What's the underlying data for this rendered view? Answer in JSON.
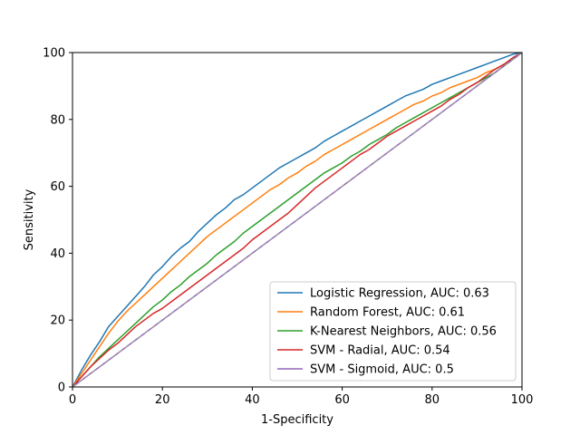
{
  "chart_data": {
    "type": "line",
    "title": "",
    "xlabel": "1-Specificity",
    "ylabel": "Sensitivity",
    "xlim": [
      0,
      100
    ],
    "ylim": [
      0,
      100
    ],
    "xticks": [
      "0",
      "20",
      "40",
      "60",
      "80",
      "100"
    ],
    "yticks": [
      "0",
      "20",
      "40",
      "60",
      "80",
      "100"
    ],
    "grid": false,
    "legend_position": "lower-right",
    "series": [
      {
        "name": "Logistic Regression, AUC: 0.63",
        "color": "#1f77b4",
        "x": [
          0,
          2,
          4,
          6,
          8,
          10,
          12,
          14,
          16,
          18,
          20,
          22,
          24,
          26,
          28,
          30,
          32,
          34,
          36,
          38,
          40,
          42,
          44,
          46,
          48,
          50,
          52,
          54,
          56,
          58,
          60,
          62,
          64,
          66,
          68,
          70,
          72,
          74,
          76,
          78,
          80,
          82,
          84,
          86,
          88,
          90,
          92,
          94,
          96,
          98,
          100
        ],
        "y": [
          0,
          5,
          9.5,
          13.5,
          18,
          21,
          24,
          27,
          30,
          33.5,
          36,
          39,
          41.5,
          43.5,
          46.5,
          49,
          51.5,
          53.5,
          56,
          57.5,
          59.5,
          61.5,
          63.5,
          65.5,
          67,
          68.5,
          70,
          71.5,
          73.5,
          75,
          76.5,
          78,
          79.5,
          81,
          82.5,
          84,
          85.5,
          87,
          88,
          89,
          90.5,
          91.5,
          92.5,
          93.5,
          94.5,
          95.5,
          96.5,
          97.5,
          98.5,
          99.5,
          100
        ]
      },
      {
        "name": "Random Forest, AUC: 0.61",
        "color": "#ff7f0e",
        "x": [
          0,
          2,
          4,
          6,
          8,
          10,
          12,
          14,
          16,
          18,
          20,
          22,
          24,
          26,
          28,
          30,
          32,
          34,
          36,
          38,
          40,
          42,
          44,
          46,
          48,
          50,
          52,
          54,
          56,
          58,
          60,
          62,
          64,
          66,
          68,
          70,
          72,
          74,
          76,
          78,
          80,
          82,
          84,
          86,
          88,
          90,
          92,
          94,
          96,
          98,
          100
        ],
        "y": [
          0,
          4,
          8,
          12,
          16,
          19.5,
          22.5,
          25,
          27.5,
          30,
          32.5,
          35,
          37.5,
          40,
          42.5,
          45,
          47,
          49,
          51,
          53,
          55,
          57,
          59,
          60.5,
          62.5,
          64,
          66,
          67.5,
          69.5,
          71,
          72.5,
          74,
          75.5,
          77,
          78.5,
          80,
          81.5,
          83,
          84.5,
          85.5,
          87,
          88,
          89.5,
          90.5,
          91.5,
          92.5,
          94,
          95,
          96.5,
          98,
          100
        ]
      },
      {
        "name": "K-Nearest Neighbors, AUC: 0.56",
        "color": "#2ca02c",
        "x": [
          0,
          2,
          4,
          6,
          8,
          10,
          12,
          14,
          16,
          18,
          20,
          22,
          24,
          26,
          28,
          30,
          32,
          34,
          36,
          38,
          40,
          42,
          44,
          46,
          48,
          50,
          52,
          54,
          56,
          58,
          60,
          62,
          64,
          66,
          68,
          70,
          72,
          74,
          76,
          78,
          80,
          82,
          84,
          86,
          88,
          90,
          92,
          94,
          96,
          98,
          100
        ],
        "y": [
          0,
          3,
          6,
          9,
          11.5,
          14,
          16.5,
          19,
          21.5,
          24,
          26,
          28.5,
          30.5,
          33,
          35,
          37,
          39.5,
          41.5,
          43.5,
          46,
          48,
          50,
          52,
          54,
          56,
          58,
          60,
          62,
          64,
          65.5,
          67,
          69,
          70.5,
          72.5,
          74,
          75.5,
          77.5,
          79,
          80.5,
          82,
          83.5,
          85,
          86.5,
          88,
          89.5,
          91,
          92.5,
          94,
          96,
          98,
          100
        ]
      },
      {
        "name": "SVM - Radial, AUC: 0.54",
        "color": "#d62728",
        "x": [
          0,
          2,
          4,
          6,
          8,
          10,
          12,
          14,
          16,
          18,
          20,
          22,
          24,
          26,
          28,
          30,
          32,
          34,
          36,
          38,
          40,
          42,
          44,
          46,
          48,
          50,
          52,
          54,
          56,
          58,
          60,
          62,
          64,
          66,
          68,
          70,
          72,
          74,
          76,
          78,
          80,
          82,
          84,
          86,
          88,
          90,
          92,
          94,
          96,
          98,
          100
        ],
        "y": [
          0,
          3,
          6,
          8.5,
          11,
          13,
          15.5,
          18,
          20,
          22,
          23.5,
          25.5,
          27.5,
          29.5,
          31.5,
          33.5,
          35.5,
          37.5,
          39.5,
          41.5,
          44,
          46,
          48,
          50,
          52,
          54.5,
          57,
          59.5,
          61.5,
          63.5,
          65.5,
          67.5,
          69.5,
          71,
          73,
          75,
          76.5,
          78,
          79.5,
          81,
          82.5,
          84,
          86,
          87.5,
          89.5,
          91,
          93,
          95,
          96.5,
          98.5,
          100
        ]
      },
      {
        "name": "SVM - Sigmoid, AUC: 0.5",
        "color": "#9467bd",
        "x": [
          0,
          100
        ],
        "y": [
          0,
          100
        ]
      }
    ]
  }
}
